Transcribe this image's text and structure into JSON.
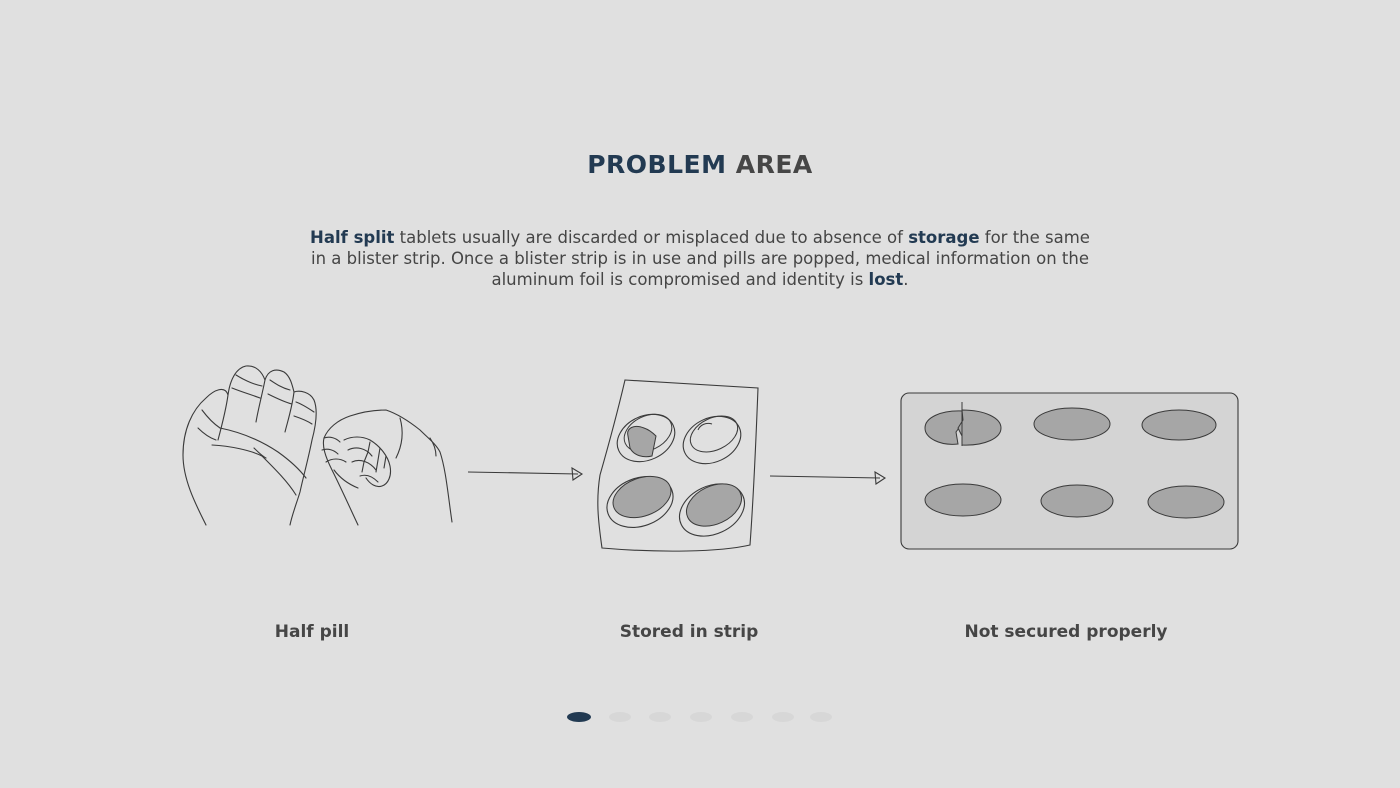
{
  "title": {
    "accent": "PROBLEM",
    "rest": "AREA"
  },
  "description": {
    "b1": "Half split",
    "t1": " tablets usually are discarded or misplaced due to absence of ",
    "b2": "storage",
    "t2": " for the same in a blister strip. Once a blister strip is in use and pills are popped, medical information on the aluminum foil is compromised and identity is ",
    "b3": "lost",
    "t3": "."
  },
  "captions": {
    "half_pill": "Half pill",
    "stored_in_strip": "Stored in strip",
    "not_secured": "Not secured properly"
  },
  "carousel": {
    "total": 7,
    "active": 1
  },
  "colors": {
    "background": "#e0e0e0",
    "accent": "#223a52",
    "text": "#464646",
    "pill_fill": "#a6a6a6",
    "strip_fill": "#d4d4d4"
  }
}
